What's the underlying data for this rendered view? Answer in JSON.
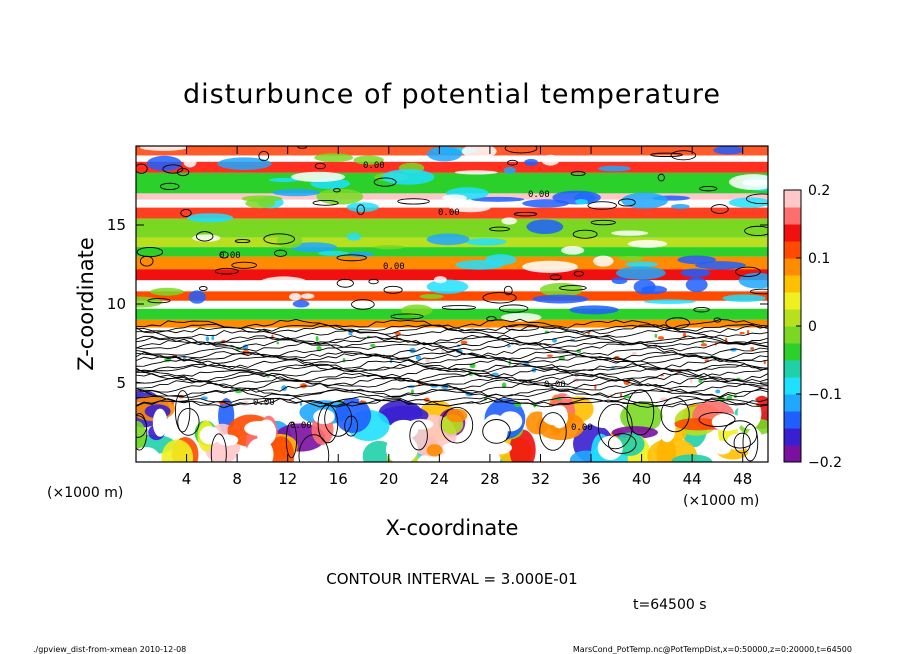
{
  "chart_data": {
    "type": "heatmap",
    "title": "disturbunce of potential temperature",
    "xlabel": "X-coordinate",
    "ylabel": "Z-coordinate",
    "x_unit": "(×1000 m)",
    "y_unit": "(×1000 m)",
    "xlim": [
      0,
      50
    ],
    "ylim": [
      0,
      20
    ],
    "x_ticks": [
      4,
      8,
      12,
      16,
      20,
      24,
      28,
      32,
      36,
      40,
      44,
      48
    ],
    "y_ticks": [
      5,
      10,
      15
    ],
    "colorbar": {
      "range": [
        -0.2,
        0.2
      ],
      "tick_labels": [
        "0.2",
        "0.1",
        "0",
        "−0.1",
        "−0.2"
      ],
      "tick_values": [
        0.2,
        0.1,
        0,
        -0.1,
        -0.2
      ],
      "colors": [
        "#7b0fa0",
        "#3a1fd0",
        "#1f5fff",
        "#1fa8ff",
        "#1fe0ff",
        "#20d0a8",
        "#2bd02b",
        "#7ad823",
        "#b8e01f",
        "#f0f020",
        "#ffc000",
        "#ff8c00",
        "#ff4a00",
        "#f01010",
        "#ff6e6e",
        "#ffc8c8"
      ]
    },
    "contour_interval_text": "CONTOUR INTERVAL = 3.000E-01",
    "contour_label": "0.00",
    "time_text": "t=64500 s"
  },
  "footer": {
    "left": "./gpview_dist-from-xmean  2010-12-08",
    "right": "MarsCond_PotTemp.nc@PotTempDist,x=0:50000,z=0:20000,t=64500"
  }
}
